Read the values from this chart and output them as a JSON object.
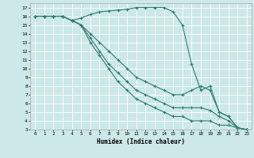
{
  "xlabel": "Humidex (Indice chaleur)",
  "bg_color": "#cce8e8",
  "grid_color": "#ffffff",
  "line_color": "#2e7d6e",
  "xlim": [
    -0.5,
    23.5
  ],
  "ylim": [
    3,
    17.5
  ],
  "xticks": [
    0,
    1,
    2,
    3,
    4,
    5,
    6,
    7,
    8,
    9,
    10,
    11,
    12,
    13,
    14,
    15,
    16,
    17,
    18,
    19,
    20,
    21,
    22,
    23
  ],
  "yticks": [
    3,
    4,
    5,
    6,
    7,
    8,
    9,
    10,
    11,
    12,
    13,
    14,
    15,
    16,
    17
  ],
  "series": [
    {
      "x": [
        0,
        1,
        2,
        3,
        4,
        5,
        6,
        7,
        8,
        9,
        10,
        11,
        12,
        13,
        14,
        15,
        16,
        17,
        18,
        19,
        20,
        21,
        22,
        23
      ],
      "y": [
        16,
        16,
        16,
        16,
        15.5,
        15.8,
        16.2,
        16.5,
        16.6,
        16.7,
        16.8,
        17,
        17,
        17,
        17,
        16.5,
        15,
        10.5,
        7.5,
        8.0,
        5.0,
        4.5,
        3.2,
        3.0
      ]
    },
    {
      "x": [
        0,
        1,
        2,
        3,
        4,
        5,
        6,
        7,
        8,
        9,
        10,
        11,
        12,
        13,
        14,
        15,
        16,
        17,
        18,
        19,
        20,
        21,
        22,
        23
      ],
      "y": [
        16,
        16,
        16,
        16,
        15.5,
        15.0,
        14.0,
        13.0,
        12.0,
        11.0,
        10.0,
        9.0,
        8.5,
        8.0,
        7.5,
        7.0,
        7.0,
        7.5,
        8.0,
        7.5,
        5.0,
        4.5,
        3.2,
        3.0
      ]
    },
    {
      "x": [
        0,
        1,
        2,
        3,
        4,
        5,
        6,
        7,
        8,
        9,
        10,
        11,
        12,
        13,
        14,
        15,
        16,
        17,
        18,
        19,
        20,
        21,
        22,
        23
      ],
      "y": [
        16,
        16,
        16,
        16,
        15.5,
        15.0,
        13.5,
        12.0,
        10.5,
        9.5,
        8.5,
        7.5,
        7.0,
        6.5,
        6.0,
        5.5,
        5.5,
        5.5,
        5.5,
        5.2,
        4.5,
        4.0,
        3.2,
        3.0
      ]
    },
    {
      "x": [
        0,
        1,
        2,
        3,
        4,
        5,
        6,
        7,
        8,
        9,
        10,
        11,
        12,
        13,
        14,
        15,
        16,
        17,
        18,
        19,
        20,
        21,
        22,
        23
      ],
      "y": [
        16,
        16,
        16,
        16,
        15.5,
        15.0,
        13.0,
        11.5,
        10.0,
        8.5,
        7.5,
        6.5,
        6.0,
        5.5,
        5.0,
        4.5,
        4.5,
        4.0,
        4.0,
        4.0,
        3.5,
        3.5,
        3.2,
        3.0
      ]
    }
  ]
}
